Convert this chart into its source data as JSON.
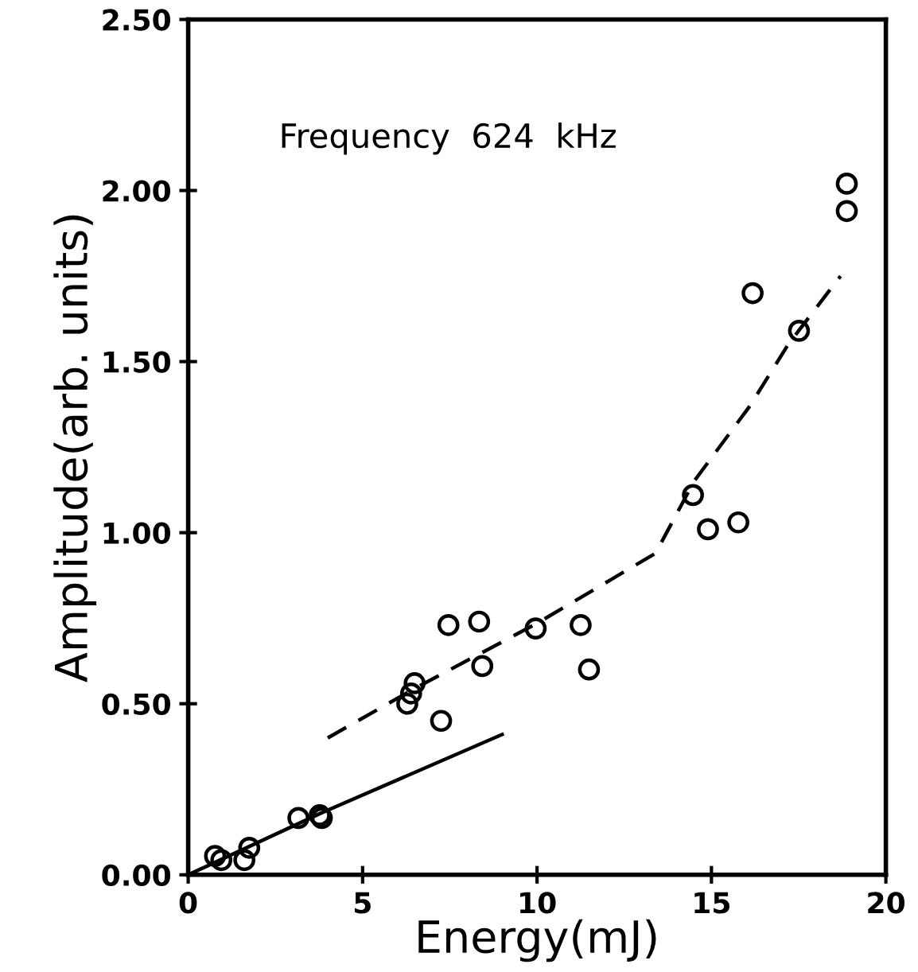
{
  "chart_data": {
    "type": "scatter",
    "xlabel": "Energy(mJ)",
    "ylabel": "Amplitude(arb. units)",
    "annotations": [
      "Frequency  624  kHz"
    ],
    "xlim": [
      0,
      20
    ],
    "xticks": [
      0,
      5,
      10,
      15,
      20
    ],
    "ylim": [
      0,
      2.5
    ],
    "yticks": [
      {
        "value": 0,
        "label": "0.00"
      },
      {
        "value": 0.5,
        "label": "0.50"
      },
      {
        "value": 1.0,
        "label": "1.00"
      },
      {
        "value": 1.5,
        "label": "1.50"
      },
      {
        "value": 2.0,
        "label": "2.00"
      },
      {
        "value": 2.5,
        "label": "2.50"
      }
    ],
    "grid": false,
    "legend": false,
    "series": [
      {
        "marker": "circle",
        "color": "#000000",
        "x": [
          0.77,
          0.95,
          1.61,
          1.75,
          3.16,
          3.77,
          3.83,
          6.28,
          6.39,
          6.49,
          7.25,
          7.46,
          8.34,
          8.43,
          9.96,
          11.25,
          11.49,
          14.47,
          14.9,
          15.77,
          16.18,
          17.51,
          18.88,
          18.88
        ],
        "values": [
          0.055,
          0.043,
          0.043,
          0.079,
          0.166,
          0.174,
          0.166,
          0.5,
          0.53,
          0.56,
          0.45,
          0.73,
          0.74,
          0.61,
          0.72,
          0.73,
          0.6,
          1.11,
          1.01,
          1.03,
          1.7,
          1.59,
          1.94,
          2.02
        ]
      },
      {
        "type": "line",
        "line_style": "solid",
        "color": "#000000",
        "x": [
          0,
          3.8,
          9.0
        ],
        "values": [
          0,
          0.18,
          0.41
        ]
      },
      {
        "type": "line",
        "line_style": "dashed",
        "color": "#000000",
        "x": [
          4.0,
          6.5,
          10.0,
          13.4,
          14.5,
          16.1,
          17.2,
          18.7
        ],
        "values": [
          0.4,
          0.545,
          0.735,
          0.94,
          1.15,
          1.37,
          1.55,
          1.75
        ]
      }
    ]
  }
}
